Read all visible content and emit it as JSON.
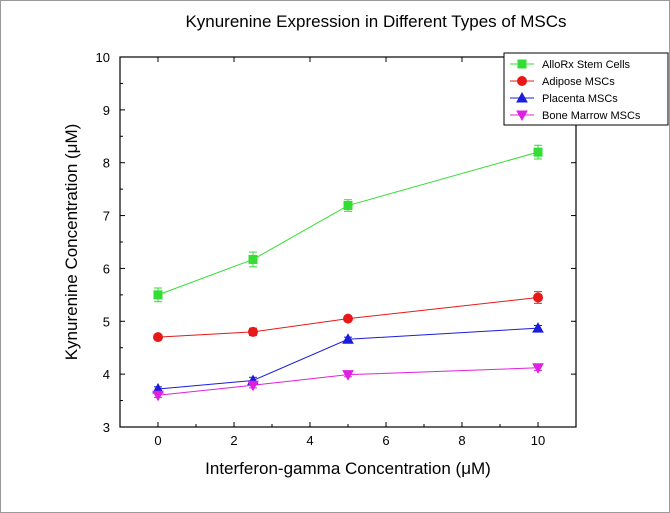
{
  "chart_data": {
    "type": "line",
    "title": "Kynurenine Expression in Different Types of MSCs",
    "xlabel": "Interferon-gamma Concentration (μM)",
    "ylabel": "Kynurenine Concentration (μM)",
    "x": [
      0,
      2.5,
      5,
      10
    ],
    "xlim": [
      -1,
      11
    ],
    "ylim": [
      3,
      10
    ],
    "xticks": [
      0,
      2,
      4,
      6,
      8,
      10
    ],
    "yticks": [
      3,
      4,
      5,
      6,
      7,
      8,
      9,
      10
    ],
    "grid": false,
    "legend_position": "top-right",
    "series": [
      {
        "name": "AlloRx Stem Cells",
        "color": "#33dd33",
        "marker": "square",
        "values": [
          5.5,
          6.17,
          7.19,
          8.2
        ],
        "errors": [
          0.13,
          0.14,
          0.11,
          0.13
        ]
      },
      {
        "name": "Adipose MSCs",
        "color": "#e81818",
        "marker": "circle",
        "values": [
          4.7,
          4.8,
          5.05,
          5.45
        ],
        "errors": [
          0.03,
          0.07,
          0.03,
          0.11
        ]
      },
      {
        "name": "Placenta MSCs",
        "color": "#1c1cdc",
        "marker": "triangle-up",
        "values": [
          3.72,
          3.88,
          4.66,
          4.87
        ],
        "errors": [
          0.04,
          0.06,
          0.04,
          0.05
        ]
      },
      {
        "name": "Bone Marrow MSCs",
        "color": "#e020e0",
        "marker": "triangle-down",
        "values": [
          3.6,
          3.79,
          3.99,
          4.12
        ],
        "errors": [
          0.04,
          0.05,
          0.04,
          0.05
        ]
      }
    ]
  }
}
